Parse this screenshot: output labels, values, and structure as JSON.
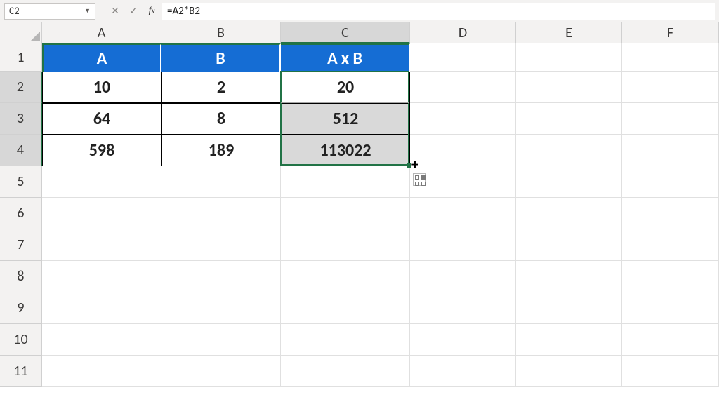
{
  "formula_bar": {
    "cell_ref": "C2",
    "formula": "=A2*B2"
  },
  "layout": {
    "row_header_width": 60,
    "col_widths": {
      "A": 170,
      "B": 170,
      "C": 184,
      "D": 151,
      "E": 151,
      "F": 138
    },
    "row_heights": {
      "header": 30,
      "1": 40,
      "default": 45
    },
    "visible_rows": 11,
    "visible_cols": [
      "A",
      "B",
      "C",
      "D",
      "E",
      "F"
    ]
  },
  "colors": {
    "header_fill": "#156dd4",
    "header_text": "#ffffff",
    "selection_border": "#217346",
    "shaded_fill": "#d9d9d9",
    "grid_line": "#e0e0e0",
    "col_row_header_bg": "#f3f2f1"
  },
  "table": {
    "range": "A1:C4",
    "headers": [
      "A",
      "B",
      "A x B"
    ],
    "rows": [
      {
        "A": "10",
        "B": "2",
        "C": "20"
      },
      {
        "A": "64",
        "B": "8",
        "C": "512"
      },
      {
        "A": "598",
        "B": "189",
        "C": "113022"
      }
    ],
    "header_fontweight": "700",
    "cell_fontweight": "700",
    "cell_fontsize": 24
  },
  "selection": {
    "range": "C2:C4",
    "active_cell": "C2"
  },
  "col_header_highlight": [
    "C"
  ],
  "row_header_highlight": [
    "2",
    "3",
    "4"
  ],
  "autofill_options_visible": true
}
